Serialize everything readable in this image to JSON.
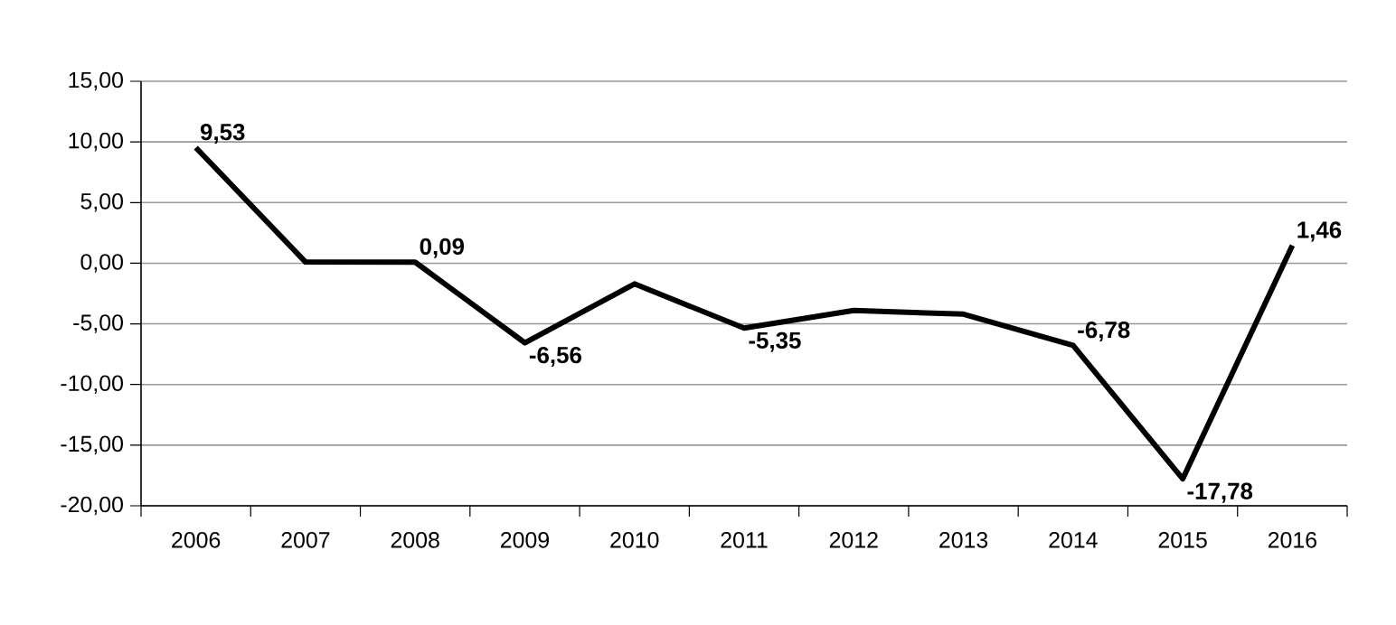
{
  "chart_data": {
    "type": "line",
    "categories": [
      "2006",
      "2007",
      "2008",
      "2009",
      "2010",
      "2011",
      "2012",
      "2013",
      "2014",
      "2015",
      "2016"
    ],
    "values": [
      9.53,
      0.1,
      0.09,
      -6.56,
      -1.7,
      -5.35,
      -3.9,
      -4.2,
      -6.78,
      -17.78,
      1.46
    ],
    "value_labels": [
      "9,53",
      null,
      "0,09",
      "-6,56",
      null,
      "-5,35",
      null,
      null,
      "-6,78",
      "-17,78",
      "1,46"
    ],
    "color": "#000000",
    "ylim": [
      -20,
      15
    ],
    "yticks": [
      {
        "value": -20,
        "label": "-20,00"
      },
      {
        "value": -15,
        "label": "-15,00"
      },
      {
        "value": -10,
        "label": "-10,00"
      },
      {
        "value": -5,
        "label": "-5,00"
      },
      {
        "value": 0,
        "label": "0,00"
      },
      {
        "value": 5,
        "label": "5,00"
      },
      {
        "value": 10,
        "label": "10,00"
      },
      {
        "value": 15,
        "label": "15,00"
      }
    ],
    "grid": "y",
    "marker": "none",
    "line_style": "solid"
  }
}
